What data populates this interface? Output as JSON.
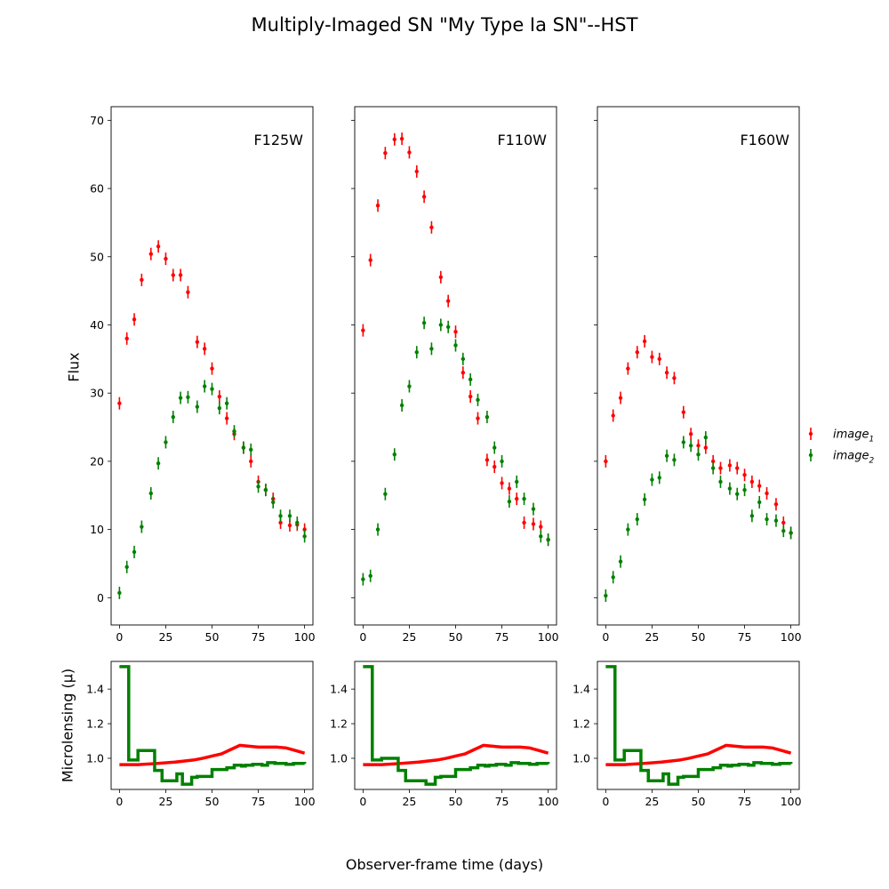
{
  "title": "Multiply-Imaged SN \"My Type Ia SN\"--HST",
  "xlabel": "Observer-frame time (days)",
  "ylabel_flux": "Flux",
  "ylabel_micro": "Microlensing (μ)",
  "legend": {
    "placement": "right",
    "entries": [
      {
        "label": "image",
        "sub": "1",
        "color": "#ff0000"
      },
      {
        "label": "image",
        "sub": "2",
        "color": "#008000"
      }
    ]
  },
  "chart_data": [
    {
      "type": "scatter",
      "band": "F125W",
      "xlim": [
        -4.5,
        104.5
      ],
      "ylim": [
        -4,
        72
      ],
      "xticks": [
        0,
        25,
        50,
        75,
        100
      ],
      "yticks": [
        0,
        10,
        20,
        30,
        40,
        50,
        60,
        70
      ],
      "series": [
        {
          "name": "image1",
          "color": "#ff0000",
          "x": [
            0,
            4,
            8,
            12,
            17,
            21,
            25,
            29,
            33,
            37,
            42,
            46,
            50,
            54,
            58,
            62,
            67,
            71,
            75,
            79,
            83,
            87,
            92,
            96,
            100
          ],
          "y": [
            28.5,
            38,
            40.8,
            46.6,
            50.4,
            51.5,
            49.7,
            47.3,
            47.3,
            44.8,
            37.5,
            36.5,
            33.6,
            29.5,
            26.3,
            24,
            22,
            20,
            17,
            15.8,
            14.5,
            11,
            10.6,
            10.7,
            10
          ]
        },
        {
          "name": "image2",
          "color": "#008000",
          "x": [
            0,
            4,
            8,
            12,
            17,
            21,
            25,
            29,
            33,
            37,
            42,
            46,
            50,
            54,
            58,
            62,
            67,
            71,
            75,
            79,
            83,
            87,
            92,
            96,
            100
          ],
          "y": [
            0.7,
            4.5,
            6.7,
            10.4,
            15.3,
            19.7,
            22.8,
            26.5,
            29.3,
            29.4,
            28,
            31,
            30.6,
            27.8,
            28.5,
            24.4,
            22,
            21.7,
            16.3,
            15.8,
            14,
            12,
            12,
            11,
            9
          ]
        }
      ]
    },
    {
      "type": "scatter",
      "band": "F110W",
      "xlim": [
        -4.5,
        104.5
      ],
      "ylim": [
        -4,
        72
      ],
      "xticks": [
        0,
        25,
        50,
        75,
        100
      ],
      "yticks": [
        0,
        10,
        20,
        30,
        40,
        50,
        60,
        70
      ],
      "series": [
        {
          "name": "image1",
          "color": "#ff0000",
          "x": [
            0,
            4,
            8,
            12,
            17,
            21,
            25,
            29,
            33,
            37,
            42,
            46,
            50,
            54,
            58,
            62,
            67,
            71,
            75,
            79,
            83,
            87,
            92,
            96,
            100
          ],
          "y": [
            39.2,
            49.5,
            57.5,
            65.2,
            67.2,
            67.3,
            65.3,
            62.5,
            58.8,
            54.3,
            47,
            43.5,
            39,
            33,
            29.5,
            26.3,
            20.2,
            19.2,
            16.8,
            16,
            14.5,
            11,
            10.8,
            10.4,
            8.5
          ]
        },
        {
          "name": "image2",
          "color": "#008000",
          "x": [
            0,
            4,
            8,
            12,
            17,
            21,
            25,
            29,
            33,
            37,
            42,
            46,
            50,
            54,
            58,
            62,
            67,
            71,
            75,
            79,
            83,
            87,
            92,
            96,
            100
          ],
          "y": [
            2.7,
            3.2,
            10,
            15.2,
            21,
            28.2,
            31,
            36,
            40.3,
            36.5,
            40,
            39.7,
            37,
            35,
            32,
            29,
            26.5,
            22,
            20,
            14.1,
            17,
            14.5,
            13,
            9,
            8.5
          ]
        }
      ]
    },
    {
      "type": "scatter",
      "band": "F160W",
      "xlim": [
        -4.5,
        104.5
      ],
      "ylim": [
        -4,
        72
      ],
      "xticks": [
        0,
        25,
        50,
        75,
        100
      ],
      "yticks": [
        0,
        10,
        20,
        30,
        40,
        50,
        60,
        70
      ],
      "series": [
        {
          "name": "image1",
          "color": "#ff0000",
          "x": [
            0,
            4,
            8,
            12,
            17,
            21,
            25,
            29,
            33,
            37,
            42,
            46,
            50,
            54,
            58,
            62,
            67,
            71,
            75,
            79,
            83,
            87,
            92,
            96,
            100
          ],
          "y": [
            20,
            26.7,
            29.3,
            33.6,
            36,
            37.6,
            35.3,
            35,
            33,
            32.2,
            27.2,
            24,
            22.3,
            22,
            20,
            19,
            19.4,
            19,
            18,
            17,
            16.4,
            15.3,
            13.7,
            11,
            9.5
          ]
        },
        {
          "name": "image2",
          "color": "#008000",
          "x": [
            0,
            4,
            8,
            12,
            17,
            21,
            25,
            29,
            33,
            37,
            42,
            46,
            50,
            54,
            58,
            62,
            67,
            71,
            75,
            79,
            83,
            87,
            92,
            96,
            100
          ],
          "y": [
            0.3,
            3,
            5.3,
            10,
            11.5,
            14.4,
            17.3,
            17.6,
            20.8,
            20.2,
            22.8,
            22.3,
            21,
            23.5,
            19,
            17,
            16,
            15.2,
            15.8,
            12,
            14,
            11.5,
            11.3,
            9.8,
            9.5
          ]
        }
      ]
    },
    {
      "type": "line",
      "panel": "microlensing-F125W",
      "xlim": [
        -4.5,
        104.5
      ],
      "ylim": [
        0.82,
        1.56
      ],
      "xticks": [
        0,
        25,
        50,
        75,
        100
      ],
      "yticks": [
        1.0,
        1.2,
        1.4
      ],
      "series": [
        {
          "name": "image1",
          "color": "#ff0000",
          "step": false,
          "x": [
            0,
            10,
            20,
            30,
            40,
            45,
            50,
            55,
            60,
            65,
            70,
            75,
            80,
            85,
            90,
            95,
            100
          ],
          "y": [
            0.963,
            0.963,
            0.97,
            0.978,
            0.99,
            1.0,
            1.013,
            1.025,
            1.05,
            1.075,
            1.07,
            1.065,
            1.065,
            1.065,
            1.06,
            1.045,
            1.03
          ]
        },
        {
          "name": "image2",
          "color": "#008000",
          "step": true,
          "x": [
            0,
            5,
            10,
            19,
            23,
            31,
            34,
            39,
            42,
            50,
            58,
            62,
            66,
            68,
            72,
            77,
            80,
            84,
            90,
            94,
            100
          ],
          "y": [
            1.53,
            0.99,
            1.045,
            0.93,
            0.87,
            0.91,
            0.85,
            0.89,
            0.895,
            0.935,
            0.945,
            0.96,
            0.955,
            0.96,
            0.965,
            0.96,
            0.975,
            0.97,
            0.965,
            0.97,
            0.968
          ]
        }
      ]
    },
    {
      "type": "line",
      "panel": "microlensing-F110W",
      "xlim": [
        -4.5,
        104.5
      ],
      "ylim": [
        0.82,
        1.56
      ],
      "xticks": [
        0,
        25,
        50,
        75,
        100
      ],
      "yticks": [
        1.0,
        1.2,
        1.4
      ],
      "series": [
        {
          "name": "image1",
          "color": "#ff0000",
          "step": false,
          "x": [
            0,
            10,
            20,
            30,
            40,
            45,
            50,
            55,
            60,
            65,
            70,
            75,
            80,
            85,
            90,
            95,
            100
          ],
          "y": [
            0.963,
            0.963,
            0.97,
            0.978,
            0.99,
            1.0,
            1.013,
            1.025,
            1.05,
            1.075,
            1.07,
            1.065,
            1.065,
            1.065,
            1.06,
            1.045,
            1.03
          ]
        },
        {
          "name": "image2",
          "color": "#008000",
          "step": true,
          "x": [
            0,
            5,
            10,
            19,
            23,
            31,
            34,
            39,
            42,
            50,
            58,
            62,
            66,
            68,
            72,
            77,
            80,
            84,
            90,
            94,
            100
          ],
          "y": [
            1.53,
            0.99,
            1.0,
            0.93,
            0.87,
            0.87,
            0.85,
            0.89,
            0.895,
            0.935,
            0.945,
            0.96,
            0.955,
            0.96,
            0.965,
            0.96,
            0.975,
            0.97,
            0.965,
            0.97,
            0.968
          ]
        }
      ]
    },
    {
      "type": "line",
      "panel": "microlensing-F160W",
      "xlim": [
        -4.5,
        104.5
      ],
      "ylim": [
        0.82,
        1.56
      ],
      "xticks": [
        0,
        25,
        50,
        75,
        100
      ],
      "yticks": [
        1.0,
        1.2,
        1.4
      ],
      "series": [
        {
          "name": "image1",
          "color": "#ff0000",
          "step": false,
          "x": [
            0,
            10,
            20,
            30,
            40,
            45,
            50,
            55,
            60,
            65,
            70,
            75,
            80,
            85,
            90,
            95,
            100
          ],
          "y": [
            0.963,
            0.963,
            0.97,
            0.978,
            0.99,
            1.0,
            1.013,
            1.025,
            1.05,
            1.075,
            1.07,
            1.065,
            1.065,
            1.065,
            1.06,
            1.045,
            1.03
          ]
        },
        {
          "name": "image2",
          "color": "#008000",
          "step": true,
          "x": [
            0,
            5,
            10,
            19,
            23,
            31,
            34,
            39,
            42,
            50,
            58,
            62,
            66,
            68,
            72,
            77,
            80,
            84,
            90,
            94,
            100
          ],
          "y": [
            1.53,
            0.99,
            1.045,
            0.93,
            0.87,
            0.91,
            0.85,
            0.89,
            0.895,
            0.935,
            0.945,
            0.96,
            0.955,
            0.96,
            0.965,
            0.96,
            0.975,
            0.97,
            0.965,
            0.97,
            0.968
          ]
        }
      ]
    }
  ]
}
